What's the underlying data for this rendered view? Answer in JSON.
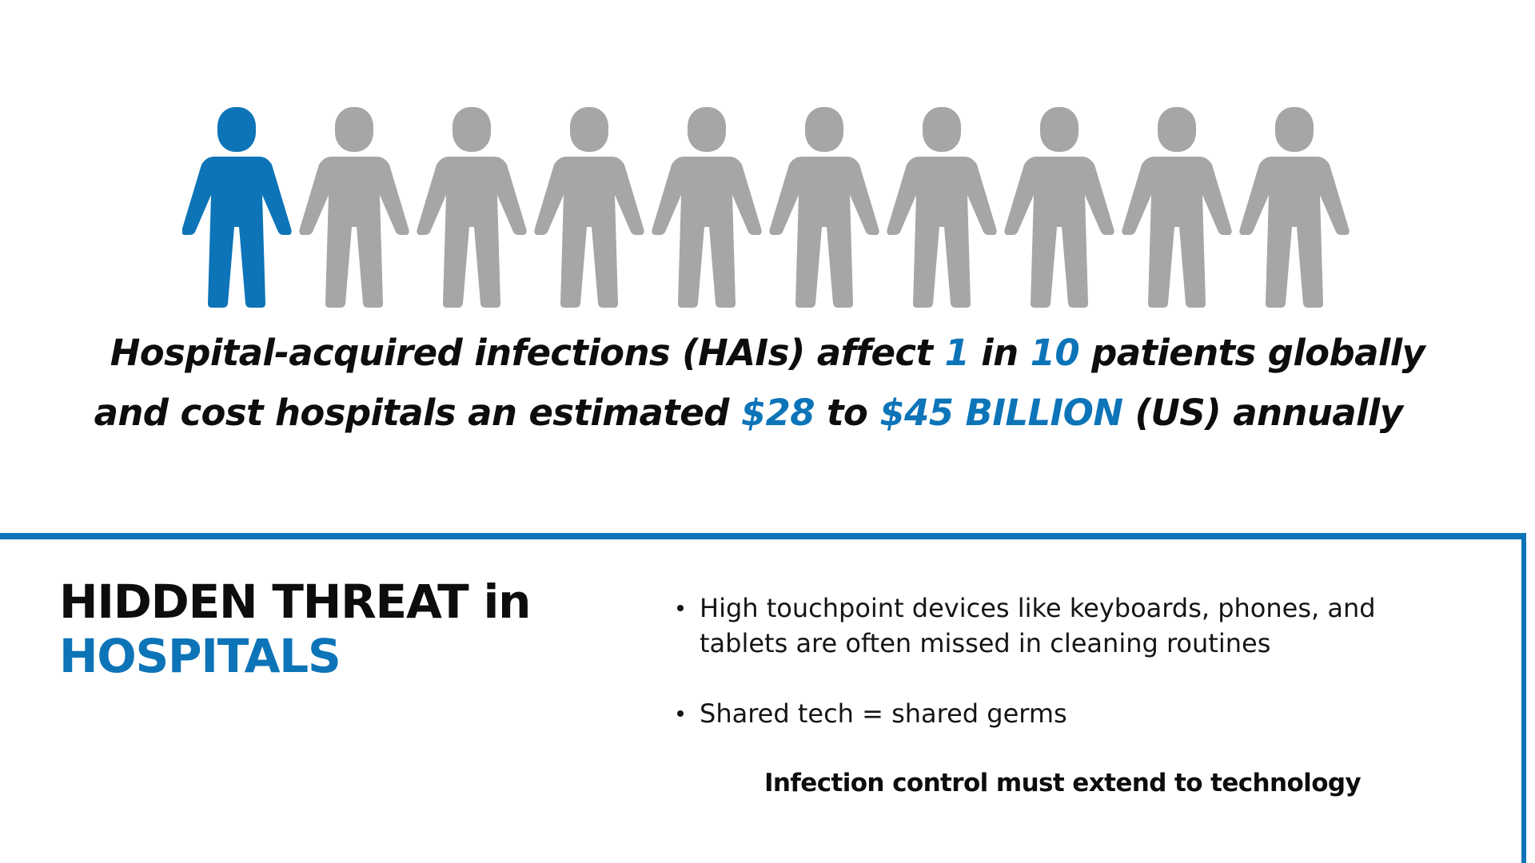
{
  "colors": {
    "accent": "#0d74b8",
    "person_highlight": "#0d74b8",
    "person_muted": "#a6a6a6",
    "text": "#0d0d0d"
  },
  "people": {
    "total": 10,
    "highlighted": 1,
    "icon": "person-icon"
  },
  "statement": {
    "line1": {
      "part1": "Hospital-acquired infections (HAIs) affect ",
      "num1": "1",
      "part2": " in ",
      "num2": "10",
      "part3": " patients globally"
    },
    "line2": {
      "part1": "and cost hospitals an estimated ",
      "amount1": "$28",
      "part2": " to ",
      "amount2": "$45 BILLION",
      "part3": " (US) annually"
    }
  },
  "panel": {
    "title_line1": "HIDDEN THREAT in",
    "title_line2": "HOSPITALS",
    "bullets": [
      "High touchpoint devices like keyboards, phones, and tablets are often missed in cleaning routines",
      "Shared tech = shared germs"
    ],
    "emphasis": "Infection control must extend to technology"
  }
}
